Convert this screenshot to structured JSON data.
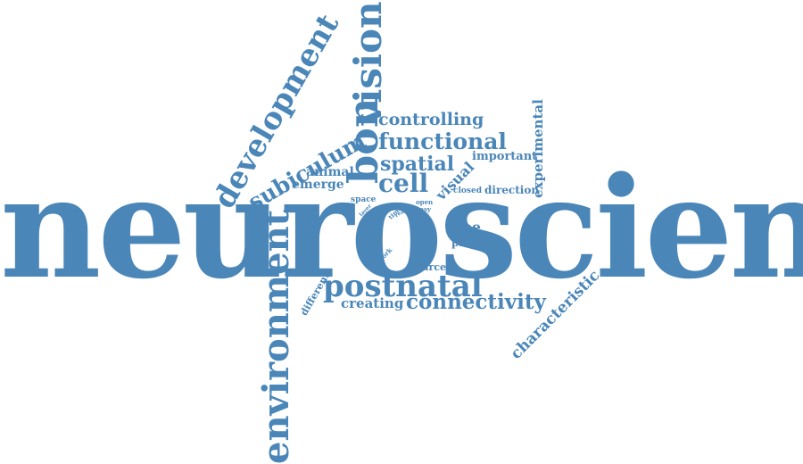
{
  "colors": {
    "word": "#4a86b8",
    "background": "#ffffff"
  },
  "words": {
    "neuroscience": "neuroscience",
    "environment": "environment",
    "bon": "bon",
    "vision": "vision",
    "development": "development",
    "subiculum": "subiculum",
    "postnatal": "postnatal",
    "connectivity": "connectivity",
    "functional": "functional",
    "controlling": "controlling",
    "spatial": "spatial",
    "cell": "cell",
    "visual": "visual",
    "important": "important",
    "experimental": "experimental",
    "direction": "direction",
    "closed": "closed",
    "type": "type",
    "place": "place",
    "head": "head",
    "source": "source",
    "characteristic": "characteristic",
    "creating": "creating",
    "different": "different",
    "animal": "animal",
    "emerge": "emerge",
    "space": "space",
    "time": "time",
    "real": "real",
    "open": "open",
    "easy": "easy",
    "grid": "grid",
    "adult": "adult",
    "work": "work",
    "layer": "layer"
  }
}
